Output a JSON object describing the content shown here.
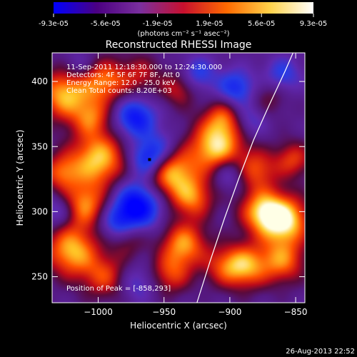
{
  "chart_data": {
    "type": "heatmap",
    "title": "Reconstructed RHESSI Image",
    "colorbar": {
      "tick_labels": [
        "-9.3e-05",
        "-5.6e-05",
        "-1.9e-05",
        "1.9e-05",
        "5.6e-05",
        "9.3e-05"
      ],
      "unit_label": "(photons cm⁻² s⁻¹ asec⁻²)",
      "range": [
        -9.3e-05,
        9.3e-05
      ],
      "colors": [
        "#0000ff",
        "#4b0082",
        "#7a2f9e",
        "#c8102e",
        "#ff6a00",
        "#ffd24a",
        "#ffffff"
      ]
    },
    "xlabel": "Heliocentric X (arcsec)",
    "ylabel": "Heliocentric Y (arcsec)",
    "xlim": [
      -1035,
      -843
    ],
    "ylim": [
      230,
      422
    ],
    "x_ticks": [
      -1000,
      -950,
      -900,
      -850
    ],
    "x_tick_labels": [
      "−1000",
      "−950",
      "−900",
      "−850"
    ],
    "y_ticks": [
      250,
      300,
      350,
      400
    ],
    "y_tick_labels": [
      "250",
      "300",
      "350",
      "400"
    ],
    "info_lines": [
      "11-Sep-2011 12:18:30.000 to 12:24:30.000",
      "Detectors: 4F 5F 6F 7F 8F, Att 0",
      "Energy Range: 12.0 - 25.0 keV",
      "Clean    Total counts: 8.20E+03"
    ],
    "peak_label": "Position of Peak = [-858,293]",
    "peak": [
      -858,
      293
    ],
    "marker": [
      -961,
      340
    ],
    "limb": [
      [
        -925,
        230
      ],
      [
        -915,
        262
      ],
      [
        -904,
        295
      ],
      [
        -893,
        326
      ],
      [
        -882,
        355
      ],
      [
        -870,
        382
      ],
      [
        -858,
        408
      ],
      [
        -852,
        422
      ]
    ],
    "blobs": [
      {
        "x": -1025,
        "y": 390,
        "v": 0.9,
        "s": 14
      },
      {
        "x": -995,
        "y": 400,
        "v": 0.7,
        "s": 12
      },
      {
        "x": -1005,
        "y": 372,
        "v": 0.55,
        "s": 10
      },
      {
        "x": -1000,
        "y": 340,
        "v": 0.95,
        "s": 15
      },
      {
        "x": -1028,
        "y": 330,
        "v": 0.6,
        "s": 10
      },
      {
        "x": -1010,
        "y": 305,
        "v": 0.75,
        "s": 12
      },
      {
        "x": -1020,
        "y": 270,
        "v": 0.9,
        "s": 14
      },
      {
        "x": -995,
        "y": 250,
        "v": 0.55,
        "s": 12
      },
      {
        "x": -978,
        "y": 280,
        "v": 0.45,
        "s": 10
      },
      {
        "x": -968,
        "y": 405,
        "v": 0.4,
        "s": 11
      },
      {
        "x": -945,
        "y": 330,
        "v": 0.95,
        "s": 14
      },
      {
        "x": -928,
        "y": 310,
        "v": 0.65,
        "s": 11
      },
      {
        "x": -910,
        "y": 350,
        "v": 1.0,
        "s": 14
      },
      {
        "x": -905,
        "y": 372,
        "v": 0.55,
        "s": 10
      },
      {
        "x": -935,
        "y": 275,
        "v": 0.8,
        "s": 12
      },
      {
        "x": -945,
        "y": 252,
        "v": 0.55,
        "s": 11
      },
      {
        "x": -905,
        "y": 258,
        "v": 0.45,
        "s": 11
      },
      {
        "x": -938,
        "y": 395,
        "v": 0.5,
        "s": 10
      },
      {
        "x": -880,
        "y": 332,
        "v": 0.6,
        "s": 11
      },
      {
        "x": -875,
        "y": 300,
        "v": 0.85,
        "s": 12
      },
      {
        "x": -858,
        "y": 293,
        "v": 1.0,
        "s": 13
      },
      {
        "x": -888,
        "y": 258,
        "v": 0.8,
        "s": 12
      },
      {
        "x": -860,
        "y": 262,
        "v": 0.7,
        "s": 12
      },
      {
        "x": -852,
        "y": 340,
        "v": 0.55,
        "s": 10
      },
      {
        "x": -870,
        "y": 388,
        "v": 0.3,
        "s": 10
      },
      {
        "x": -972,
        "y": 372,
        "v": -0.75,
        "s": 11
      },
      {
        "x": -962,
        "y": 340,
        "v": -0.8,
        "s": 10
      },
      {
        "x": -970,
        "y": 305,
        "v": -0.95,
        "s": 13
      },
      {
        "x": -985,
        "y": 290,
        "v": -0.55,
        "s": 10
      },
      {
        "x": -1030,
        "y": 300,
        "v": -0.4,
        "s": 9
      },
      {
        "x": -925,
        "y": 405,
        "v": -0.5,
        "s": 10
      },
      {
        "x": -895,
        "y": 395,
        "v": -0.6,
        "s": 10
      },
      {
        "x": -900,
        "y": 330,
        "v": -0.45,
        "s": 9
      },
      {
        "x": -950,
        "y": 350,
        "v": -0.35,
        "s": 10
      },
      {
        "x": -885,
        "y": 370,
        "v": -0.35,
        "s": 9
      },
      {
        "x": -860,
        "y": 405,
        "v": -0.45,
        "s": 10
      },
      {
        "x": -1015,
        "y": 412,
        "v": -0.3,
        "s": 9
      },
      {
        "x": -970,
        "y": 245,
        "v": -0.35,
        "s": 10
      }
    ]
  },
  "footer": {
    "timestamp": "26-Aug-2013 22:52"
  }
}
